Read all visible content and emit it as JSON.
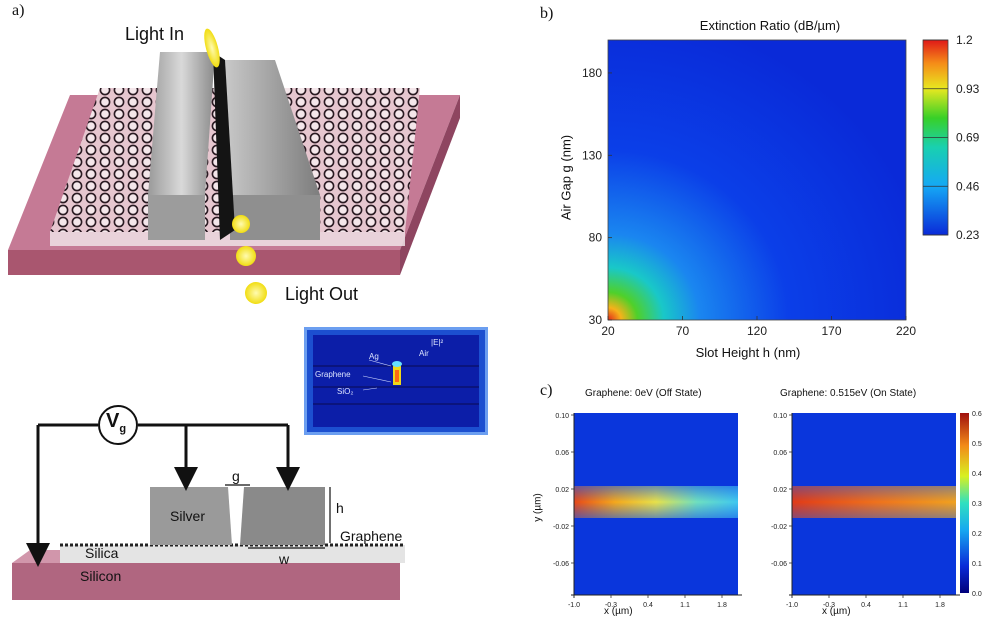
{
  "panels": {
    "a": "a)",
    "b": "b)",
    "c": "c)"
  },
  "device3d": {
    "light_in": "Light In",
    "light_out": "Light Out"
  },
  "inset": {
    "field_label": "|E|²",
    "air": "Air",
    "ag": "Ag",
    "graphene": "Graphene",
    "sio2": "SiO₂"
  },
  "cross_section": {
    "vg": "V",
    "vg_sub": "g",
    "gap": "g",
    "height": "h",
    "width": "w",
    "silver": "Silver",
    "graphene": "Graphene",
    "silica": "Silica",
    "silicon": "Silicon"
  },
  "colors": {
    "silicon": "#b5647f",
    "silver": "#8c8c8c",
    "plot_blue": "#0a2fd8",
    "light": "#f3e51b"
  },
  "chart_data": [
    {
      "type": "heatmap",
      "title": "Extinction Ratio (dB/µm)",
      "xlabel": "Slot Height h (nm)",
      "ylabel": "Air Gap g (nm)",
      "xticks": [
        "20",
        "70",
        "120",
        "170",
        "220"
      ],
      "yticks": [
        "30",
        "80",
        "130",
        "180"
      ],
      "xlim": [
        20,
        220
      ],
      "ylim": [
        30,
        200
      ],
      "colorbar": {
        "ticks": [
          "1.2",
          "0.93",
          "0.69",
          "0.46",
          "0.23"
        ],
        "range": [
          0.23,
          1.2
        ]
      },
      "max_region": "bottom-left"
    },
    {
      "type": "heatmap",
      "title": "Graphene: 0eV (Off State)",
      "xlabel": "x (µm)",
      "ylabel": "y (µm)",
      "xticks": [
        "-1.0",
        "-0.3",
        "0.4",
        "1.1",
        "1.8"
      ],
      "yticks": [
        "0.10",
        "0.06",
        "0.02",
        "-0.02",
        "-0.06"
      ]
    },
    {
      "type": "heatmap",
      "title": "Graphene: 0.515eV (On State)",
      "xlabel": "x (µm)",
      "xticks": [
        "-1.0",
        "-0.3",
        "0.4",
        "1.1",
        "1.8"
      ],
      "yticks": [
        "0.10",
        "0.06",
        "0.02",
        "-0.02",
        "-0.06"
      ],
      "colorbar": {
        "ticks": [
          "0.6",
          "0.5",
          "0.4",
          "0.3",
          "0.2",
          "0.1",
          "0.0"
        ],
        "range": [
          0.0,
          0.6
        ]
      }
    }
  ]
}
